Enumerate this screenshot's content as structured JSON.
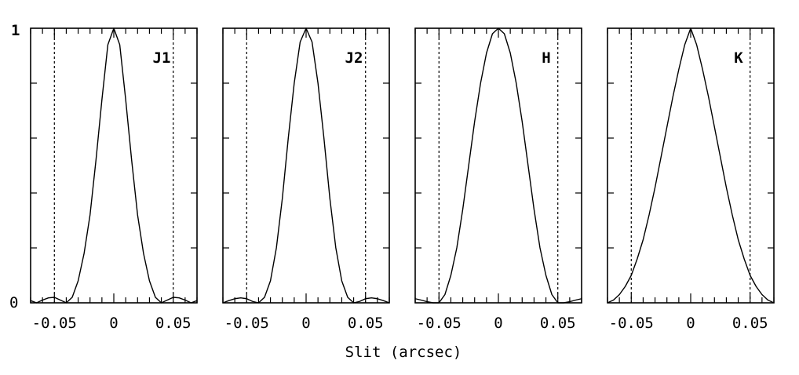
{
  "chart_data": {
    "type": "line",
    "xlabel": "Slit (arcsec)",
    "ylabel": "",
    "xlim": [
      -0.07,
      0.07
    ],
    "ylim": [
      0,
      1
    ],
    "x_ticks": [
      -0.05,
      0,
      0.05
    ],
    "x_tick_labels": [
      "-0.05",
      "0",
      "0.05"
    ],
    "y_ticks": [
      0,
      1
    ],
    "y_tick_labels": [
      "0",
      "1"
    ],
    "slit_edges": [
      -0.05,
      0.05
    ],
    "grid": false,
    "panels": [
      {
        "label": "J1",
        "x": [
          -0.07,
          -0.065,
          -0.06,
          -0.055,
          -0.05,
          -0.045,
          -0.04,
          -0.035,
          -0.03,
          -0.025,
          -0.02,
          -0.015,
          -0.01,
          -0.005,
          0,
          0.005,
          0.01,
          0.015,
          0.02,
          0.025,
          0.03,
          0.035,
          0.04,
          0.045,
          0.05,
          0.055,
          0.06,
          0.065,
          0.07
        ],
        "y": [
          0.008,
          0.0,
          0.01,
          0.018,
          0.02,
          0.01,
          0.0,
          0.02,
          0.08,
          0.18,
          0.32,
          0.52,
          0.74,
          0.94,
          1.0,
          0.94,
          0.74,
          0.52,
          0.32,
          0.18,
          0.08,
          0.02,
          0.0,
          0.01,
          0.02,
          0.018,
          0.01,
          0.0,
          0.008
        ]
      },
      {
        "label": "J2",
        "x": [
          -0.07,
          -0.065,
          -0.06,
          -0.055,
          -0.05,
          -0.045,
          -0.04,
          -0.035,
          -0.03,
          -0.025,
          -0.02,
          -0.015,
          -0.01,
          -0.005,
          0,
          0.005,
          0.01,
          0.015,
          0.02,
          0.025,
          0.03,
          0.035,
          0.04,
          0.045,
          0.05,
          0.055,
          0.06,
          0.065,
          0.07
        ],
        "y": [
          0.0,
          0.008,
          0.015,
          0.018,
          0.015,
          0.005,
          0.0,
          0.02,
          0.08,
          0.2,
          0.38,
          0.6,
          0.8,
          0.95,
          1.0,
          0.95,
          0.8,
          0.6,
          0.38,
          0.2,
          0.08,
          0.02,
          0.0,
          0.005,
          0.015,
          0.018,
          0.015,
          0.008,
          0.0
        ]
      },
      {
        "label": "H",
        "x": [
          -0.07,
          -0.065,
          -0.06,
          -0.055,
          -0.05,
          -0.045,
          -0.04,
          -0.035,
          -0.03,
          -0.025,
          -0.02,
          -0.015,
          -0.01,
          -0.005,
          0,
          0.005,
          0.01,
          0.015,
          0.02,
          0.025,
          0.03,
          0.035,
          0.04,
          0.045,
          0.05,
          0.055,
          0.06,
          0.065,
          0.07
        ],
        "y": [
          0.015,
          0.01,
          0.004,
          0.0,
          0.0,
          0.03,
          0.1,
          0.2,
          0.34,
          0.5,
          0.66,
          0.8,
          0.91,
          0.98,
          1.0,
          0.98,
          0.91,
          0.8,
          0.66,
          0.5,
          0.34,
          0.2,
          0.1,
          0.03,
          0.0,
          0.0,
          0.004,
          0.01,
          0.015
        ]
      },
      {
        "label": "K",
        "x": [
          -0.07,
          -0.065,
          -0.06,
          -0.055,
          -0.05,
          -0.045,
          -0.04,
          -0.035,
          -0.03,
          -0.025,
          -0.02,
          -0.015,
          -0.01,
          -0.005,
          0,
          0.005,
          0.01,
          0.015,
          0.02,
          0.025,
          0.03,
          0.035,
          0.04,
          0.045,
          0.05,
          0.055,
          0.06,
          0.065,
          0.07
        ],
        "y": [
          0.0,
          0.01,
          0.03,
          0.06,
          0.1,
          0.16,
          0.23,
          0.32,
          0.42,
          0.53,
          0.64,
          0.75,
          0.85,
          0.94,
          1.0,
          0.94,
          0.85,
          0.75,
          0.64,
          0.53,
          0.42,
          0.32,
          0.23,
          0.16,
          0.1,
          0.06,
          0.03,
          0.01,
          0.0
        ]
      }
    ]
  }
}
